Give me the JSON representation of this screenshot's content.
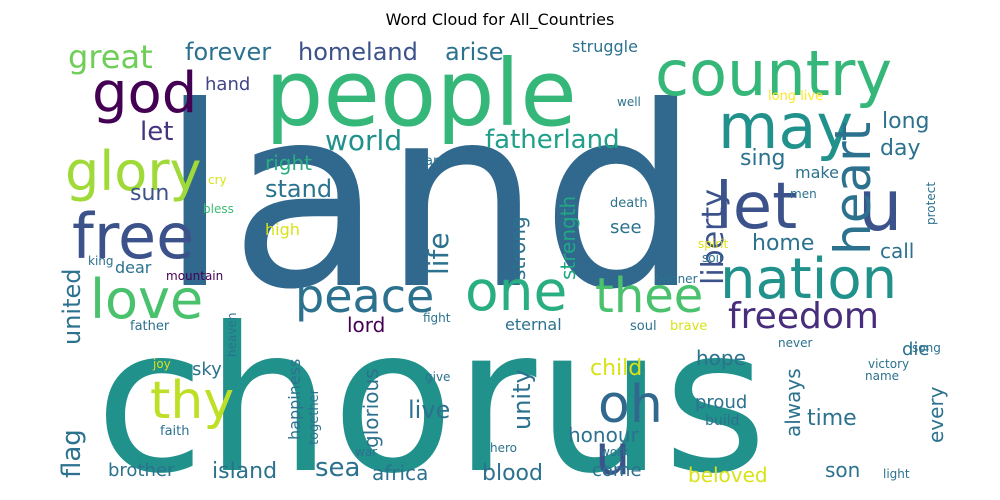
{
  "chart_data": {
    "type": "wordcloud",
    "title": "Word Cloud for All_Countries",
    "words": [
      {
        "text": "land",
        "color": "#31688e"
      },
      {
        "text": "chorus",
        "color": "#21918c"
      },
      {
        "text": "people",
        "color": "#35b779"
      },
      {
        "text": "country",
        "color": "#35b779"
      },
      {
        "text": "god",
        "color": "#440154"
      },
      {
        "text": "may",
        "color": "#21918c"
      },
      {
        "text": "glory",
        "color": "#a0da39"
      },
      {
        "text": "free",
        "color": "#3b528b"
      },
      {
        "text": "let",
        "color": "#3b528b"
      },
      {
        "text": "u",
        "color": "#3b528b"
      },
      {
        "text": "heart",
        "color": "#2c728e"
      },
      {
        "text": "nation",
        "color": "#21918c"
      },
      {
        "text": "love",
        "color": "#4ac16d"
      },
      {
        "text": "one",
        "color": "#28ae80"
      },
      {
        "text": "peace",
        "color": "#2c728e"
      },
      {
        "text": "thee",
        "color": "#4ac16d"
      },
      {
        "text": "oh",
        "color": "#31688e"
      },
      {
        "text": "u",
        "color": "#3b528b"
      },
      {
        "text": "thy",
        "color": "#bddf26"
      },
      {
        "text": "freedom",
        "color": "#472d7b"
      },
      {
        "text": "great",
        "color": "#6ece58"
      },
      {
        "text": "forever",
        "color": "#2c728e"
      },
      {
        "text": "homeland",
        "color": "#3b528b"
      },
      {
        "text": "arise",
        "color": "#2c728e"
      },
      {
        "text": "struggle",
        "color": "#2c728e"
      },
      {
        "text": "hand",
        "color": "#414487"
      },
      {
        "text": "well",
        "color": "#2c728e"
      },
      {
        "text": "long live",
        "color": "#fde725"
      },
      {
        "text": "long",
        "color": "#2c728e"
      },
      {
        "text": "let",
        "color": "#46337f"
      },
      {
        "text": "world",
        "color": "#21918c"
      },
      {
        "text": "fatherland",
        "color": "#1fa088"
      },
      {
        "text": "day",
        "color": "#2c728e"
      },
      {
        "text": "sing",
        "color": "#2c728e"
      },
      {
        "text": "liberty",
        "color": "#3b528b"
      },
      {
        "text": "right",
        "color": "#28ae80"
      },
      {
        "text": "strength",
        "color": "#22a785"
      },
      {
        "text": "stand",
        "color": "#2c728e"
      },
      {
        "text": "sun",
        "color": "#3b528b"
      },
      {
        "text": "make",
        "color": "#2c728e"
      },
      {
        "text": "men",
        "color": "#2c728e"
      },
      {
        "text": "protect",
        "color": "#2c728e"
      },
      {
        "text": "arm",
        "color": "#2c728e"
      },
      {
        "text": "cry",
        "color": "#d8e219"
      },
      {
        "text": "bless",
        "color": "#3dbc74"
      },
      {
        "text": "death",
        "color": "#2c728e"
      },
      {
        "text": "life",
        "color": "#2c728e"
      },
      {
        "text": "strong",
        "color": "#2c728e"
      },
      {
        "text": "see",
        "color": "#2c728e"
      },
      {
        "text": "high",
        "color": "#d8e219"
      },
      {
        "text": "home",
        "color": "#2c728e"
      },
      {
        "text": "call",
        "color": "#2c728e"
      },
      {
        "text": "spirit",
        "color": "#d8e219"
      },
      {
        "text": "king",
        "color": "#2c728e"
      },
      {
        "text": "dear",
        "color": "#2c728e"
      },
      {
        "text": "soil",
        "color": "#2c728e"
      },
      {
        "text": "mountain",
        "color": "#440154"
      },
      {
        "text": "banner",
        "color": "#2c728e"
      },
      {
        "text": "flag",
        "color": "#2c728e"
      },
      {
        "text": "united",
        "color": "#2c728e"
      },
      {
        "text": "heaven",
        "color": "#2c728e"
      },
      {
        "text": "fight",
        "color": "#2c728e"
      },
      {
        "text": "lord",
        "color": "#440154"
      },
      {
        "text": "eternal",
        "color": "#2c728e"
      },
      {
        "text": "soul",
        "color": "#2c728e"
      },
      {
        "text": "brave",
        "color": "#d8e219"
      },
      {
        "text": "die",
        "color": "#2c728e"
      },
      {
        "text": "father",
        "color": "#2c728e"
      },
      {
        "text": "sky",
        "color": "#2c728e"
      },
      {
        "text": "unity",
        "color": "#2c728e"
      },
      {
        "text": "child",
        "color": "#d8e219"
      },
      {
        "text": "hope",
        "color": "#2c728e"
      },
      {
        "text": "always",
        "color": "#2c728e"
      },
      {
        "text": "never",
        "color": "#2c728e"
      },
      {
        "text": "song",
        "color": "#2c728e"
      },
      {
        "text": "joy",
        "color": "#d8e219"
      },
      {
        "text": "victory",
        "color": "#2c728e"
      },
      {
        "text": "name",
        "color": "#2c728e"
      },
      {
        "text": "happiness",
        "color": "#2c728e"
      },
      {
        "text": "give",
        "color": "#2c728e"
      },
      {
        "text": "glorious",
        "color": "#2c728e"
      },
      {
        "text": "live",
        "color": "#2c728e"
      },
      {
        "text": "proud",
        "color": "#2c728e"
      },
      {
        "text": "every",
        "color": "#2c728e"
      },
      {
        "text": "together",
        "color": "#2c728e"
      },
      {
        "text": "time",
        "color": "#2c728e"
      },
      {
        "text": "build",
        "color": "#2c728e"
      },
      {
        "text": "faith",
        "color": "#2c728e"
      },
      {
        "text": "honour",
        "color": "#2c728e"
      },
      {
        "text": "war",
        "color": "#2c728e"
      },
      {
        "text": "hero",
        "color": "#2c728e"
      },
      {
        "text": "work",
        "color": "#2c728e"
      },
      {
        "text": "sea",
        "color": "#2c728e"
      },
      {
        "text": "brother",
        "color": "#2c728e"
      },
      {
        "text": "island",
        "color": "#2c728e"
      },
      {
        "text": "africa",
        "color": "#2c728e"
      },
      {
        "text": "blood",
        "color": "#2c728e"
      },
      {
        "text": "come",
        "color": "#2c728e"
      },
      {
        "text": "beloved",
        "color": "#d8e219"
      },
      {
        "text": "son",
        "color": "#2c728e"
      },
      {
        "text": "light",
        "color": "#2c728e"
      }
    ]
  }
}
